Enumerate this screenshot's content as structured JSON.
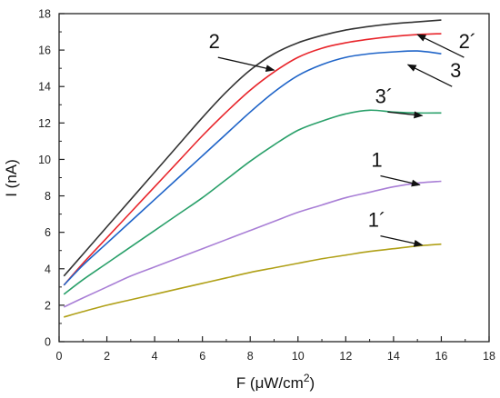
{
  "chart_data": {
    "type": "line",
    "xlabel": "F (μW/cm²)",
    "ylabel": "I (nA)",
    "xlim": [
      0,
      18
    ],
    "ylim": [
      0,
      18
    ],
    "xticks": [
      0,
      2,
      4,
      6,
      8,
      10,
      12,
      14,
      16,
      18
    ],
    "yticks": [
      0,
      2,
      4,
      6,
      8,
      10,
      12,
      14,
      16,
      18
    ],
    "grid": false,
    "series": [
      {
        "name": "2",
        "color": "#333333",
        "x": [
          0.2,
          1,
          2,
          3,
          4,
          5,
          6,
          7,
          8,
          9,
          10,
          11,
          12,
          13,
          14,
          15,
          16
        ],
        "y": [
          3.6,
          4.8,
          6.3,
          7.8,
          9.3,
          10.8,
          12.3,
          13.7,
          14.9,
          15.8,
          16.4,
          16.8,
          17.1,
          17.3,
          17.45,
          17.55,
          17.65
        ]
      },
      {
        "name": "2´",
        "color": "#e8252b",
        "x": [
          0.2,
          1,
          2,
          3,
          4,
          5,
          6,
          7,
          8,
          9,
          10,
          11,
          12,
          13,
          14,
          15,
          16
        ],
        "y": [
          3.1,
          4.3,
          5.7,
          7.1,
          8.5,
          9.9,
          11.3,
          12.6,
          13.8,
          14.8,
          15.6,
          16.1,
          16.4,
          16.6,
          16.75,
          16.85,
          16.9
        ]
      },
      {
        "name": "3",
        "color": "#1f64c8",
        "x": [
          0.2,
          1,
          2,
          3,
          4,
          5,
          6,
          7,
          8,
          9,
          10,
          11,
          12,
          13,
          14,
          15,
          16
        ],
        "y": [
          3.1,
          4.2,
          5.4,
          6.6,
          7.8,
          9.0,
          10.2,
          11.4,
          12.6,
          13.7,
          14.6,
          15.2,
          15.6,
          15.8,
          15.9,
          15.95,
          15.8
        ]
      },
      {
        "name": "3´",
        "color": "#2aa06a",
        "x": [
          0.2,
          1,
          2,
          3,
          4,
          5,
          6,
          7,
          8,
          9,
          10,
          11,
          12,
          13,
          14,
          15,
          16
        ],
        "y": [
          2.6,
          3.4,
          4.3,
          5.2,
          6.1,
          7.0,
          7.9,
          8.9,
          9.9,
          10.8,
          11.6,
          12.1,
          12.5,
          12.7,
          12.6,
          12.55,
          12.55
        ]
      },
      {
        "name": "1",
        "color": "#a97fd6",
        "x": [
          0.2,
          1,
          2,
          3,
          4,
          5,
          6,
          7,
          8,
          9,
          10,
          11,
          12,
          13,
          14,
          15,
          16
        ],
        "y": [
          1.9,
          2.4,
          3.0,
          3.6,
          4.1,
          4.6,
          5.1,
          5.6,
          6.1,
          6.6,
          7.1,
          7.5,
          7.9,
          8.2,
          8.5,
          8.7,
          8.8
        ]
      },
      {
        "name": "1´",
        "color": "#b0a017",
        "x": [
          0.2,
          1,
          2,
          3,
          4,
          5,
          6,
          7,
          8,
          9,
          10,
          11,
          12,
          13,
          14,
          15,
          16
        ],
        "y": [
          1.35,
          1.65,
          2.0,
          2.3,
          2.6,
          2.9,
          3.2,
          3.5,
          3.8,
          4.05,
          4.3,
          4.55,
          4.75,
          4.95,
          5.1,
          5.25,
          5.35
        ]
      }
    ],
    "annotations": [
      {
        "text": "2",
        "tx": 6.5,
        "ty": 16.1,
        "ax": 9.0,
        "ay": 14.9
      },
      {
        "text": "2´",
        "tx": 17.1,
        "ty": 16.1,
        "ax": 15.0,
        "ay": 16.85
      },
      {
        "text": "3",
        "tx": 16.6,
        "ty": 14.5,
        "ax": 14.6,
        "ay": 15.2
      },
      {
        "text": "3´",
        "tx": 13.6,
        "ty": 13.1,
        "ax": 15.2,
        "ay": 12.4
      },
      {
        "text": "1",
        "tx": 13.3,
        "ty": 9.6,
        "ax": 15.1,
        "ay": 8.6
      },
      {
        "text": "1´",
        "tx": 13.3,
        "ty": 6.3,
        "ax": 15.2,
        "ay": 5.3
      }
    ]
  }
}
